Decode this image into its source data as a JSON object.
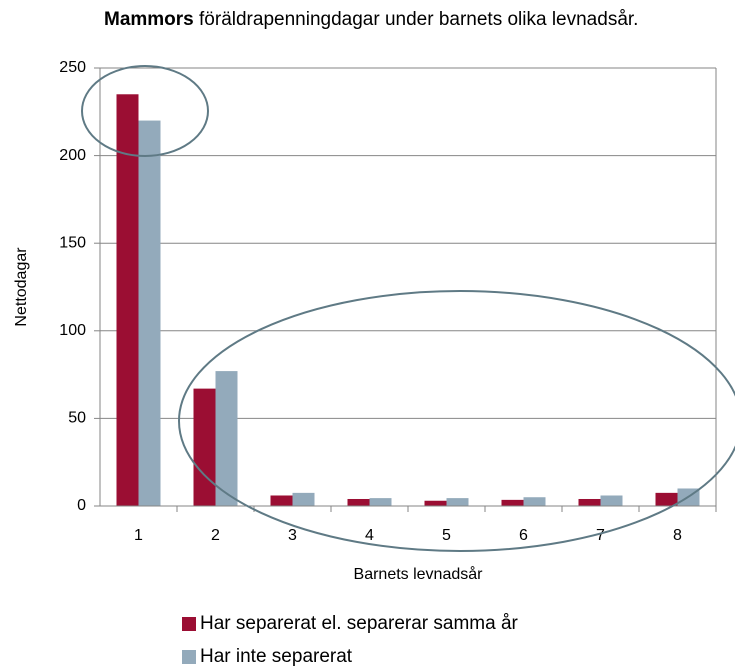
{
  "chart_data": {
    "type": "bar",
    "title": [
      "Mammors",
      "föräldrapenningdagar under barnets olika levnadsår."
    ],
    "x_label": "Barnets levnadsår",
    "y_label": "Nettodagar",
    "categories": [
      "1",
      "2",
      "3",
      "4",
      "5",
      "6",
      "7",
      "8"
    ],
    "series": [
      {
        "name": "Har separerat el. separerar samma år",
        "color": "#9b0e33",
        "values": [
          235,
          67,
          6,
          4,
          3,
          3.5,
          4,
          7.5
        ]
      },
      {
        "name": "Har inte separerat",
        "color": "#93aabb",
        "values": [
          220,
          77,
          7.5,
          4.5,
          4.5,
          5,
          6,
          10
        ]
      }
    ],
    "ylim": [
      0,
      250
    ],
    "yticks": [
      0,
      50,
      100,
      150,
      200,
      250
    ],
    "grid": true,
    "legend": "bottom"
  }
}
